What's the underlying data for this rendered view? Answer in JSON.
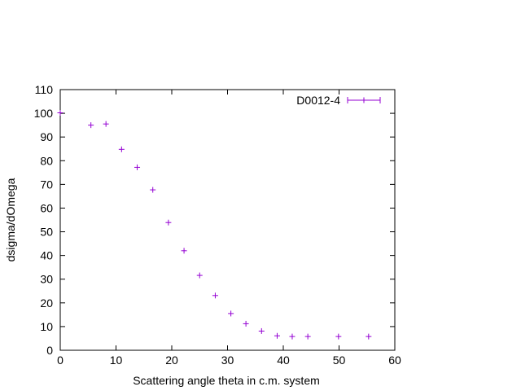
{
  "chart_data": {
    "type": "scatter",
    "title": "",
    "xlabel": "Scattering angle theta in c.m. system",
    "ylabel": "dsigma/dOmega",
    "xlim": [
      0,
      60
    ],
    "ylim": [
      0,
      110
    ],
    "xticks": [
      0,
      10,
      20,
      30,
      40,
      50,
      60
    ],
    "yticks": [
      0,
      10,
      20,
      30,
      40,
      50,
      60,
      70,
      80,
      90,
      100,
      110
    ],
    "grid": false,
    "legend_position": "top-right",
    "series": [
      {
        "name": "D0012-4",
        "color": "#9400d3",
        "marker": "plus",
        "x": [
          0.0,
          5.5,
          8.2,
          11.0,
          13.8,
          16.6,
          19.4,
          22.2,
          25.0,
          27.8,
          30.6,
          33.3,
          36.1,
          38.9,
          41.6,
          44.4,
          49.9,
          55.3
        ],
        "y": [
          100.2,
          95.0,
          95.5,
          84.8,
          77.2,
          67.7,
          53.9,
          42.0,
          31.6,
          23.1,
          15.5,
          11.2,
          8.1,
          6.1,
          5.8,
          5.8,
          5.8,
          5.8
        ]
      }
    ]
  }
}
